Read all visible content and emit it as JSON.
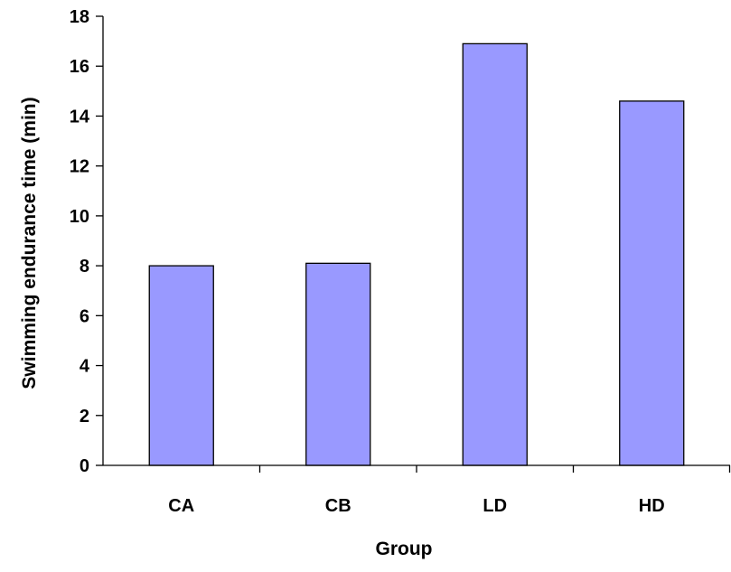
{
  "chart_data": {
    "type": "bar",
    "title": "",
    "xlabel": "Group",
    "ylabel": "Swimming endurance time (min)",
    "categories": [
      "CA",
      "CB",
      "LD",
      "HD"
    ],
    "values": [
      8.0,
      8.1,
      16.9,
      14.6
    ],
    "ylim": [
      0,
      18
    ],
    "yticks": [
      0,
      2,
      4,
      6,
      8,
      10,
      12,
      14,
      16,
      18
    ],
    "grid": false,
    "legend": "none",
    "colors": {
      "bar_fill": "#9999ff",
      "bar_stroke": "#000000",
      "axis": "#000000",
      "text": "#000000"
    }
  }
}
